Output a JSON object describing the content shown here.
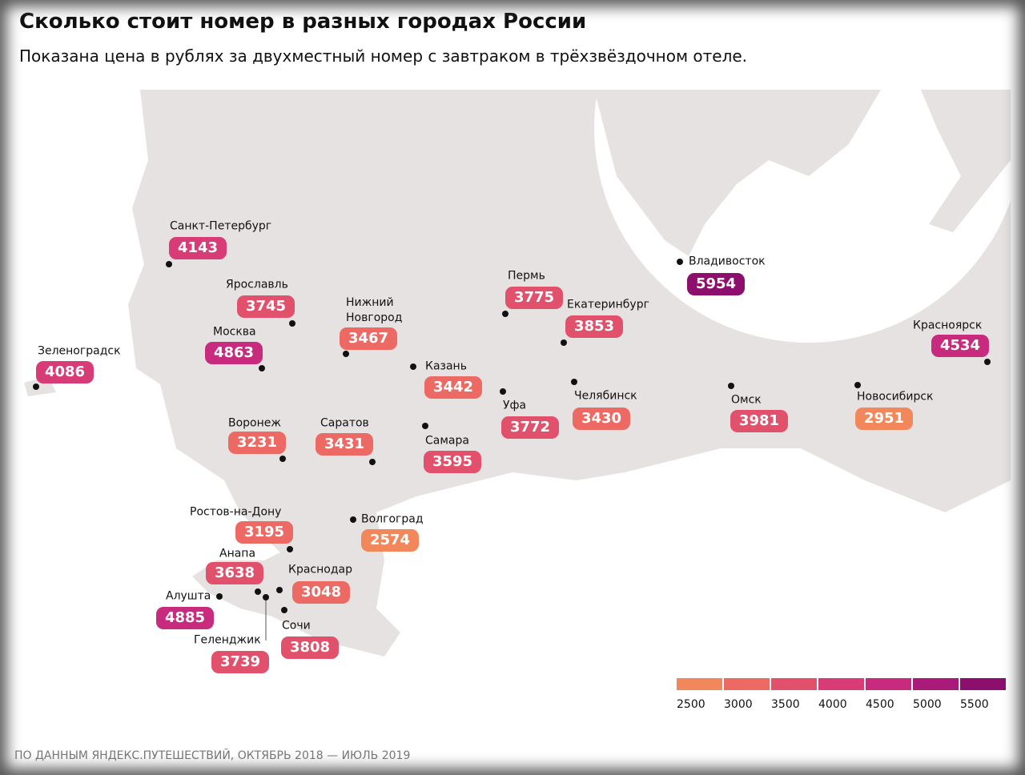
{
  "header": {
    "title": "Сколько стоит номер в разных городах России",
    "subtitle": "Показана цена в рублях за двухместный номер с завтраком в трёхзвёздочном отеле."
  },
  "map": {
    "cities": [
      {
        "name": "Санкт-Петербург",
        "price": 4143
      },
      {
        "name": "Ярославль",
        "price": 3745
      },
      {
        "name": "Москва",
        "price": 4863
      },
      {
        "name": "Зеленоградск",
        "price": 4086
      },
      {
        "name": "Нижний Новгород",
        "price": 3467
      },
      {
        "name": "Казань",
        "price": 3442
      },
      {
        "name": "Пермь",
        "price": 3775
      },
      {
        "name": "Екатеринбург",
        "price": 3853
      },
      {
        "name": "Уфа",
        "price": 3772
      },
      {
        "name": "Челябинск",
        "price": 3430
      },
      {
        "name": "Самара",
        "price": 3595
      },
      {
        "name": "Саратов",
        "price": 3431
      },
      {
        "name": "Воронеж",
        "price": 3231
      },
      {
        "name": "Омск",
        "price": 3981
      },
      {
        "name": "Новосибирск",
        "price": 2951
      },
      {
        "name": "Красноярск",
        "price": 4534
      },
      {
        "name": "Владивосток",
        "price": 5954
      },
      {
        "name": "Ростов-на-Дону",
        "price": 3195
      },
      {
        "name": "Волгоград",
        "price": 2574
      },
      {
        "name": "Анапа",
        "price": 3638
      },
      {
        "name": "Краснодар",
        "price": 3048
      },
      {
        "name": "Алушта",
        "price": 4885
      },
      {
        "name": "Геленджик",
        "price": 3739
      },
      {
        "name": "Сочи",
        "price": 3808
      }
    ]
  },
  "legend": {
    "ticks": [
      2500,
      3000,
      3500,
      4000,
      4500,
      5000,
      5500
    ],
    "colors": [
      "#f3875c",
      "#ec6a63",
      "#e2516b",
      "#d73c77",
      "#c82a7e",
      "#aa1a78",
      "#8c0e6d"
    ]
  },
  "footer": {
    "source": "ПО ДАННЫМ ЯНДЕКС.ПУТЕШЕСТВИЙ, ОКТЯБРЬ 2018 — ИЮЛЬ 2019"
  }
}
